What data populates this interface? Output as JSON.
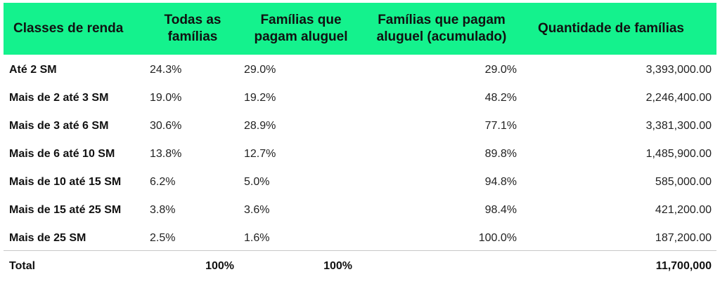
{
  "header": {
    "col1": "Classes de renda",
    "col2": "Todas as famílias",
    "col3": "Famílias que pagam aluguel",
    "col4": "Famílias que pagam aluguel (acumulado)",
    "col5": "Quantidade de famílias"
  },
  "rows": [
    {
      "label": "Até 2 SM",
      "todas": "24.3%",
      "aluguel": "29.0%",
      "acumulado": "29.0%",
      "quantidade": "3,393,000.00"
    },
    {
      "label": "Mais de 2 até 3 SM",
      "todas": "19.0%",
      "aluguel": "19.2%",
      "acumulado": "48.2%",
      "quantidade": "2,246,400.00"
    },
    {
      "label": "Mais de 3 até 6 SM",
      "todas": "30.6%",
      "aluguel": "28.9%",
      "acumulado": "77.1%",
      "quantidade": "3,381,300.00"
    },
    {
      "label": "Mais de 6 até 10 SM",
      "todas": "13.8%",
      "aluguel": "12.7%",
      "acumulado": "89.8%",
      "quantidade": "1,485,900.00"
    },
    {
      "label": "Mais de 10 até 15 SM",
      "todas": "6.2%",
      "aluguel": "5.0%",
      "acumulado": "94.8%",
      "quantidade": "585,000.00"
    },
    {
      "label": "Mais de 15 até 25 SM",
      "todas": "3.8%",
      "aluguel": "3.6%",
      "acumulado": "98.4%",
      "quantidade": "421,200.00"
    },
    {
      "label": "Mais de 25 SM",
      "todas": "2.5%",
      "aluguel": "1.6%",
      "acumulado": "100.0%",
      "quantidade": "187,200.00"
    }
  ],
  "total": {
    "label": "Total",
    "todas": "100%",
    "aluguel": "100%",
    "acumulado": "",
    "quantidade": "11,700,000"
  },
  "colors": {
    "header_bg": "#14f28d"
  }
}
